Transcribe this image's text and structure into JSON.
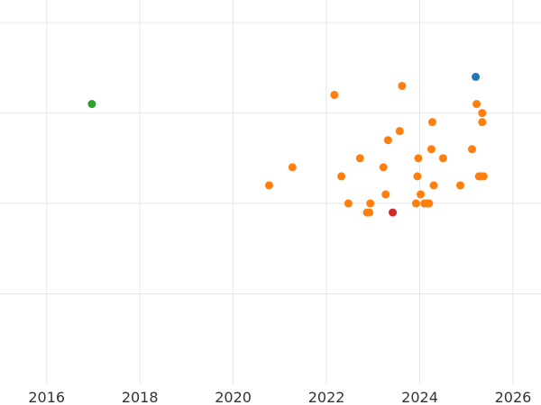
{
  "chart_data": {
    "type": "scatter",
    "title": "",
    "xlabel": "",
    "ylabel": "",
    "x_unit": "year (decimal)",
    "xlim": [
      2015.0,
      2026.6
    ],
    "ylim": [
      0,
      4.25
    ],
    "x_ticks": [
      2016,
      2018,
      2020,
      2022,
      2024,
      2026
    ],
    "x_tick_labels": [
      "2016",
      "2018",
      "2020",
      "2022",
      "2024",
      "2026"
    ],
    "y_gridlines": [
      1,
      2,
      3,
      4
    ],
    "y_tick_labels_visible": false,
    "grid": true,
    "legend": "none",
    "series": [
      {
        "color": "#2ca02c",
        "points": [
          [
            2016.97,
            3.1
          ]
        ]
      },
      {
        "color": "#1f77b4",
        "points": [
          [
            2025.2,
            3.4
          ]
        ]
      },
      {
        "color": "#d62728",
        "points": [
          [
            2023.42,
            1.9
          ]
        ]
      },
      {
        "color": "#ff7f0e",
        "points": [
          [
            2020.77,
            2.2
          ],
          [
            2021.27,
            2.4
          ],
          [
            2022.17,
            3.2
          ],
          [
            2022.32,
            2.3
          ],
          [
            2022.47,
            2.0
          ],
          [
            2022.72,
            2.5
          ],
          [
            2022.87,
            1.9
          ],
          [
            2022.92,
            1.9
          ],
          [
            2022.94,
            2.0
          ],
          [
            2023.22,
            2.4
          ],
          [
            2023.27,
            2.1
          ],
          [
            2023.32,
            2.7
          ],
          [
            2023.57,
            2.8
          ],
          [
            2023.62,
            3.3
          ],
          [
            2023.92,
            2.0
          ],
          [
            2023.95,
            2.3
          ],
          [
            2023.97,
            2.5
          ],
          [
            2024.02,
            2.1
          ],
          [
            2024.1,
            2.0
          ],
          [
            2024.17,
            2.0
          ],
          [
            2024.2,
            2.0
          ],
          [
            2024.25,
            2.6
          ],
          [
            2024.27,
            2.9
          ],
          [
            2024.3,
            2.2
          ],
          [
            2024.5,
            2.5
          ],
          [
            2024.87,
            2.2
          ],
          [
            2025.12,
            2.6
          ],
          [
            2025.22,
            3.1
          ],
          [
            2025.27,
            2.3
          ],
          [
            2025.32,
            2.3
          ],
          [
            2025.34,
            3.0
          ],
          [
            2025.34,
            2.9
          ],
          [
            2025.37,
            2.3
          ]
        ]
      }
    ]
  }
}
